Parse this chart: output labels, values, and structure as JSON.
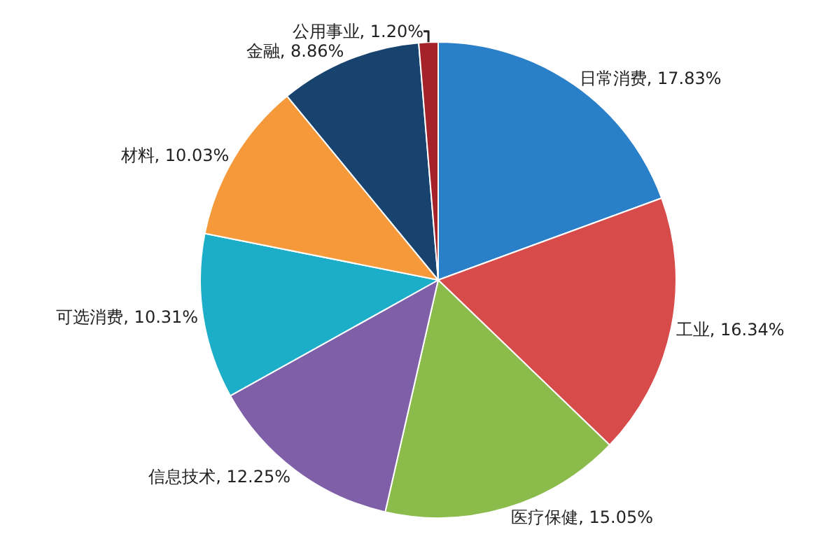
{
  "chart_data": {
    "type": "pie",
    "categories": [
      "日常消费",
      "工业",
      "医疗保健",
      "信息技术",
      "可选消费",
      "材料",
      "金融",
      "公用事业"
    ],
    "values": [
      17.83,
      16.34,
      15.05,
      12.25,
      10.31,
      10.03,
      8.86,
      1.2
    ],
    "value_labels": [
      "17.83%",
      "16.34%",
      "15.05%",
      "12.25%",
      "10.31%",
      "10.03%",
      "8.86%",
      "1.20%"
    ],
    "colors": [
      "#2a7fc9",
      "#d84b4b",
      "#8bbb4b",
      "#7f60a8",
      "#1cadc8",
      "#f5993a",
      "#17436e",
      "#a5222a"
    ],
    "legend": false
  }
}
